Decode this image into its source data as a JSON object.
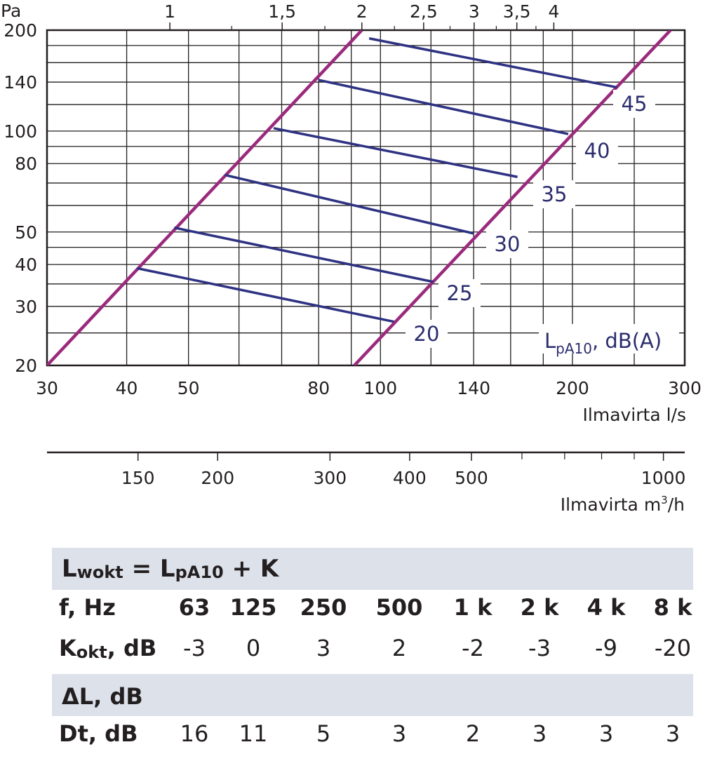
{
  "chart_data": {
    "type": "line",
    "title": "",
    "x": {
      "label": "Ilmavirta l/s",
      "scale": "log",
      "range": [
        30,
        300
      ],
      "ticks": [
        30,
        40,
        50,
        80,
        100,
        140,
        200,
        300
      ],
      "tick_labels": [
        "30",
        "40",
        "50",
        "80",
        "100",
        "140",
        "200",
        "300"
      ],
      "gridlines": [
        30,
        40,
        50,
        60,
        70,
        80,
        90,
        100,
        120,
        140,
        160,
        180,
        200,
        250,
        300
      ]
    },
    "x2": {
      "label_prefix": "Ilmavirta m",
      "label_sup": "3",
      "label_suffix": "/h",
      "scale": "log",
      "ticks": [
        150,
        200,
        300,
        400,
        500,
        1000
      ],
      "tick_labels": [
        "150",
        "200",
        "300",
        "400",
        "500",
        "1000"
      ],
      "minor_ticks": [
        600,
        700,
        800,
        900
      ]
    },
    "y": {
      "label": "Pa",
      "scale": "log",
      "range": [
        20,
        200
      ],
      "ticks": [
        20,
        30,
        40,
        50,
        80,
        100,
        140,
        200
      ],
      "tick_labels": [
        "20",
        "30",
        "40",
        "50",
        "80",
        "100",
        "140",
        "200"
      ],
      "gridlines": [
        20,
        25,
        30,
        35,
        40,
        45,
        50,
        60,
        70,
        80,
        90,
        100,
        120,
        140,
        160,
        180,
        200
      ]
    },
    "top_axis": {
      "ticks": [
        1,
        1.5,
        2,
        2.5,
        3,
        3.5,
        4
      ],
      "tick_labels": [
        "1",
        "1,5",
        "2",
        "2,5",
        "3",
        "3,5",
        "4"
      ],
      "minor_ticks": [
        1.25,
        1.75,
        2.25,
        2.75,
        3.25,
        3.75
      ]
    },
    "grid": true,
    "series_label_prefix": "L",
    "series_label_sub": "pA10",
    "series_label_suffix": ", dB(A)",
    "boundary_lines": [
      {
        "name": "",
        "color": "#9b2a7c",
        "points": [
          [
            30,
            20
          ],
          [
            93.5,
            200
          ]
        ]
      },
      {
        "name": "",
        "color": "#9b2a7c",
        "points": [
          [
            91,
            20
          ],
          [
            285,
            200
          ]
        ]
      }
    ],
    "series": [
      {
        "name": "20",
        "color": "#2e3282",
        "points": [
          [
            41.5,
            39
          ],
          [
            105,
            27
          ]
        ]
      },
      {
        "name": "25",
        "color": "#2e3282",
        "points": [
          [
            47.5,
            51.5
          ],
          [
            121,
            35.5
          ]
        ]
      },
      {
        "name": "30",
        "color": "#2e3282",
        "points": [
          [
            57,
            74
          ],
          [
            140,
            49.5
          ]
        ]
      },
      {
        "name": "35",
        "color": "#2e3282",
        "points": [
          [
            68,
            102
          ],
          [
            164,
            73
          ]
        ]
      },
      {
        "name": "40",
        "color": "#2e3282",
        "points": [
          [
            80,
            142
          ],
          [
            197,
            98
          ]
        ]
      },
      {
        "name": "45",
        "color": "#2e3282",
        "points": [
          [
            96,
            189
          ],
          [
            235,
            135
          ]
        ]
      }
    ]
  },
  "table": {
    "formula": {
      "l1": "L",
      "s1": "wokt",
      "eq": " = L",
      "s2": "pA10",
      "rest": " + K"
    },
    "freq_label": "f, Hz",
    "frequencies": [
      "63",
      "125",
      "250",
      "500",
      "1 k",
      "2 k",
      "4 k",
      "8 k"
    ],
    "k_label": "K",
    "k_sub": "okt",
    "k_suffix": ", dB",
    "k_values": [
      "-3",
      "0",
      "3",
      "2",
      "-2",
      "-3",
      "-9",
      "-20"
    ],
    "delta_label": "ΔL, dB",
    "dt_label": "Dt, dB",
    "dt_values": [
      "16",
      "11",
      "5",
      "3",
      "2",
      "3",
      "3",
      "3"
    ]
  },
  "colors": {
    "boundary": "#9b2a7c",
    "series": "#2e3282",
    "band": "#dde1ea"
  }
}
